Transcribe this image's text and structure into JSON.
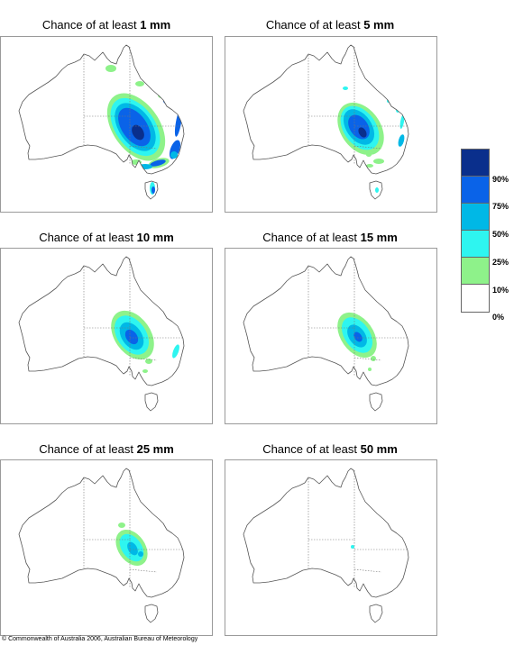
{
  "panels": [
    {
      "prefix": "Chance of at least ",
      "amount": "1 mm",
      "level": 0
    },
    {
      "prefix": "Chance of at least ",
      "amount": "5 mm",
      "level": 1
    },
    {
      "prefix": "Chance of at least ",
      "amount": "10 mm",
      "level": 2
    },
    {
      "prefix": "Chance of at least ",
      "amount": "15 mm",
      "level": 3
    },
    {
      "prefix": "Chance of at least ",
      "amount": "25 mm",
      "level": 4
    },
    {
      "prefix": "Chance of at least ",
      "amount": "50 mm",
      "level": 5
    }
  ],
  "legend": {
    "colors": [
      "#0a2f8c",
      "#0a63e8",
      "#00b8e6",
      "#2ef5f0",
      "#8ef28a",
      "#ffffff"
    ],
    "labels": [
      "90%",
      "75%",
      "50%",
      "25%",
      "10%",
      "0%"
    ]
  },
  "copyright": "© Commonwealth of Australia 2006, Australian Bureau of Meteorology"
}
